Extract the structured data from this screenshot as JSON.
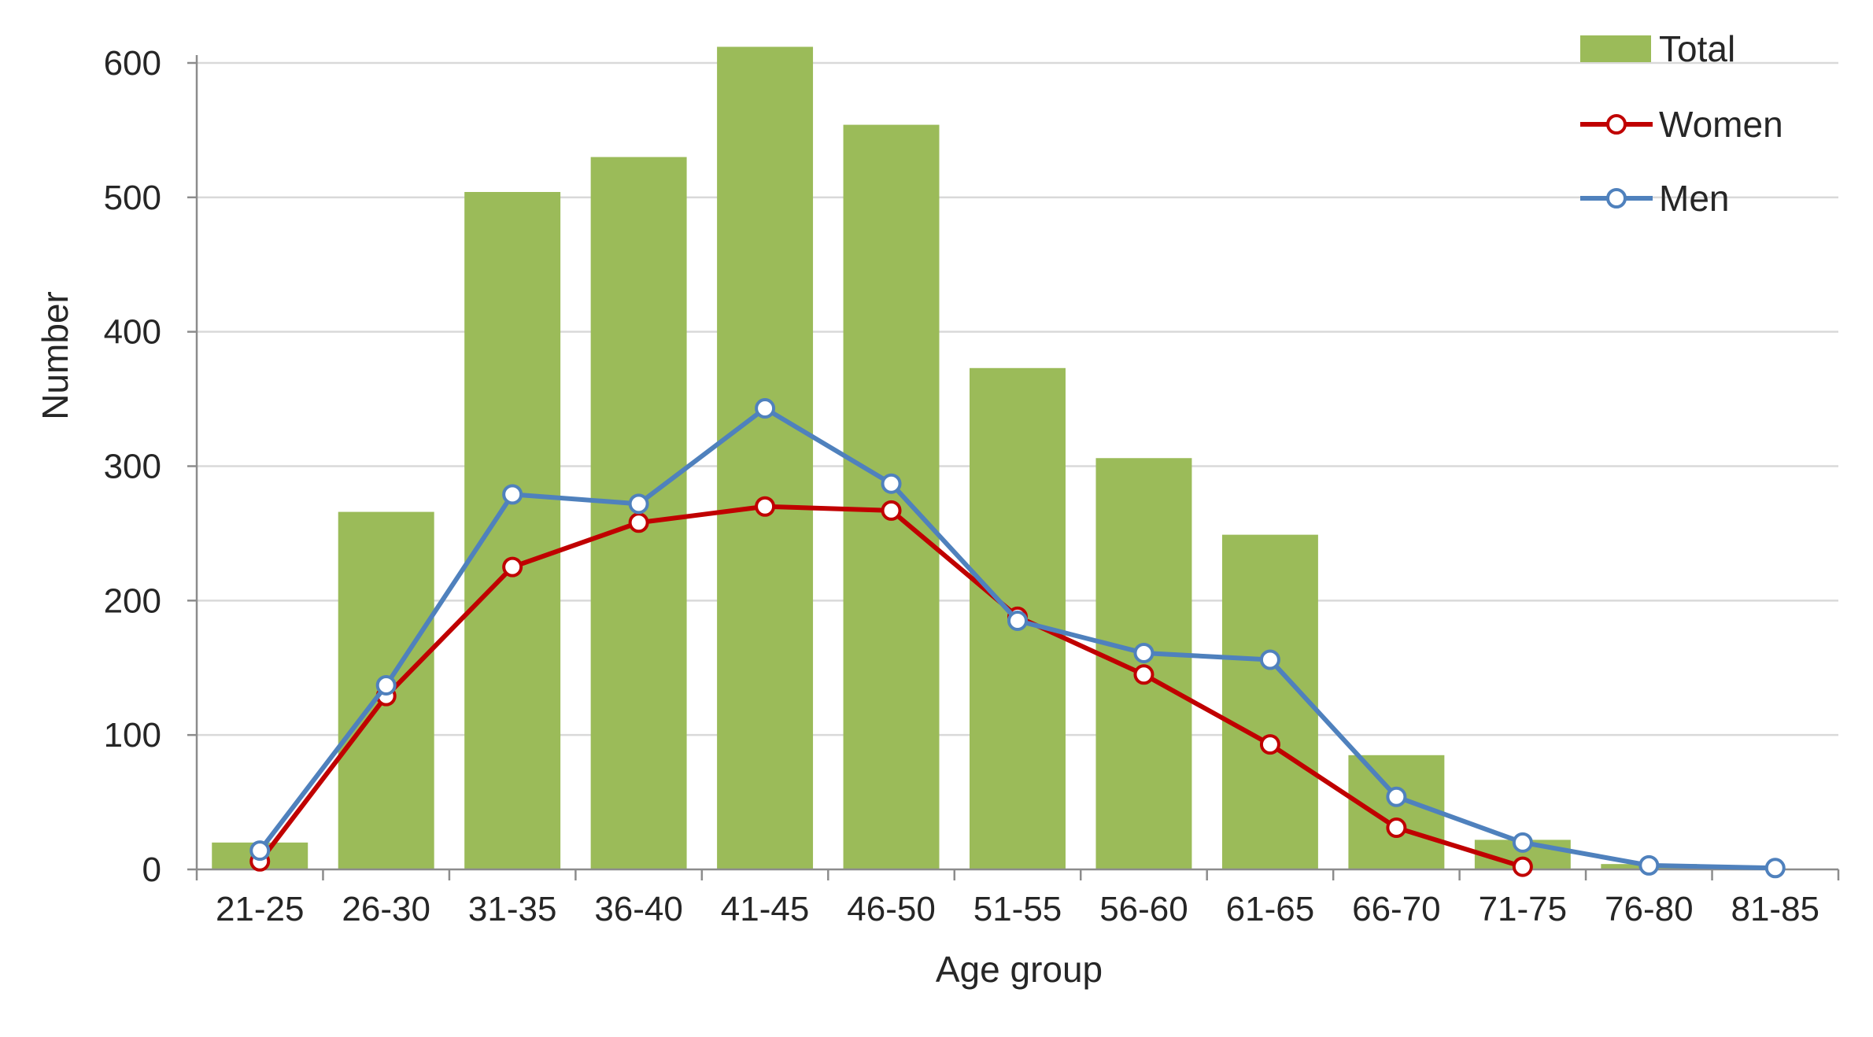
{
  "chart_data": {
    "type": "bar",
    "categories": [
      "21-25",
      "26-30",
      "31-35",
      "36-40",
      "41-45",
      "46-50",
      "51-55",
      "56-60",
      "61-65",
      "66-70",
      "71-75",
      "76-80",
      "81-85"
    ],
    "xlabel": "Age group",
    "ylabel": "Number",
    "ylim": [
      0,
      600
    ],
    "yticks": [
      0,
      100,
      200,
      300,
      400,
      500,
      600
    ],
    "grid": true,
    "legend_position": "top-right",
    "series": [
      {
        "name": "Total",
        "kind": "bar",
        "color": "#9BBB59",
        "values": [
          20,
          266,
          504,
          530,
          612,
          554,
          373,
          306,
          249,
          85,
          22,
          4,
          null
        ]
      },
      {
        "name": "Women",
        "kind": "line",
        "color": "#C00000",
        "values": [
          6,
          129,
          225,
          258,
          270,
          267,
          188,
          145,
          93,
          31,
          2,
          null,
          null
        ]
      },
      {
        "name": "Men",
        "kind": "line",
        "color": "#4F81BD",
        "values": [
          14,
          137,
          279,
          272,
          343,
          287,
          185,
          161,
          156,
          54,
          20,
          3,
          1
        ]
      }
    ]
  }
}
